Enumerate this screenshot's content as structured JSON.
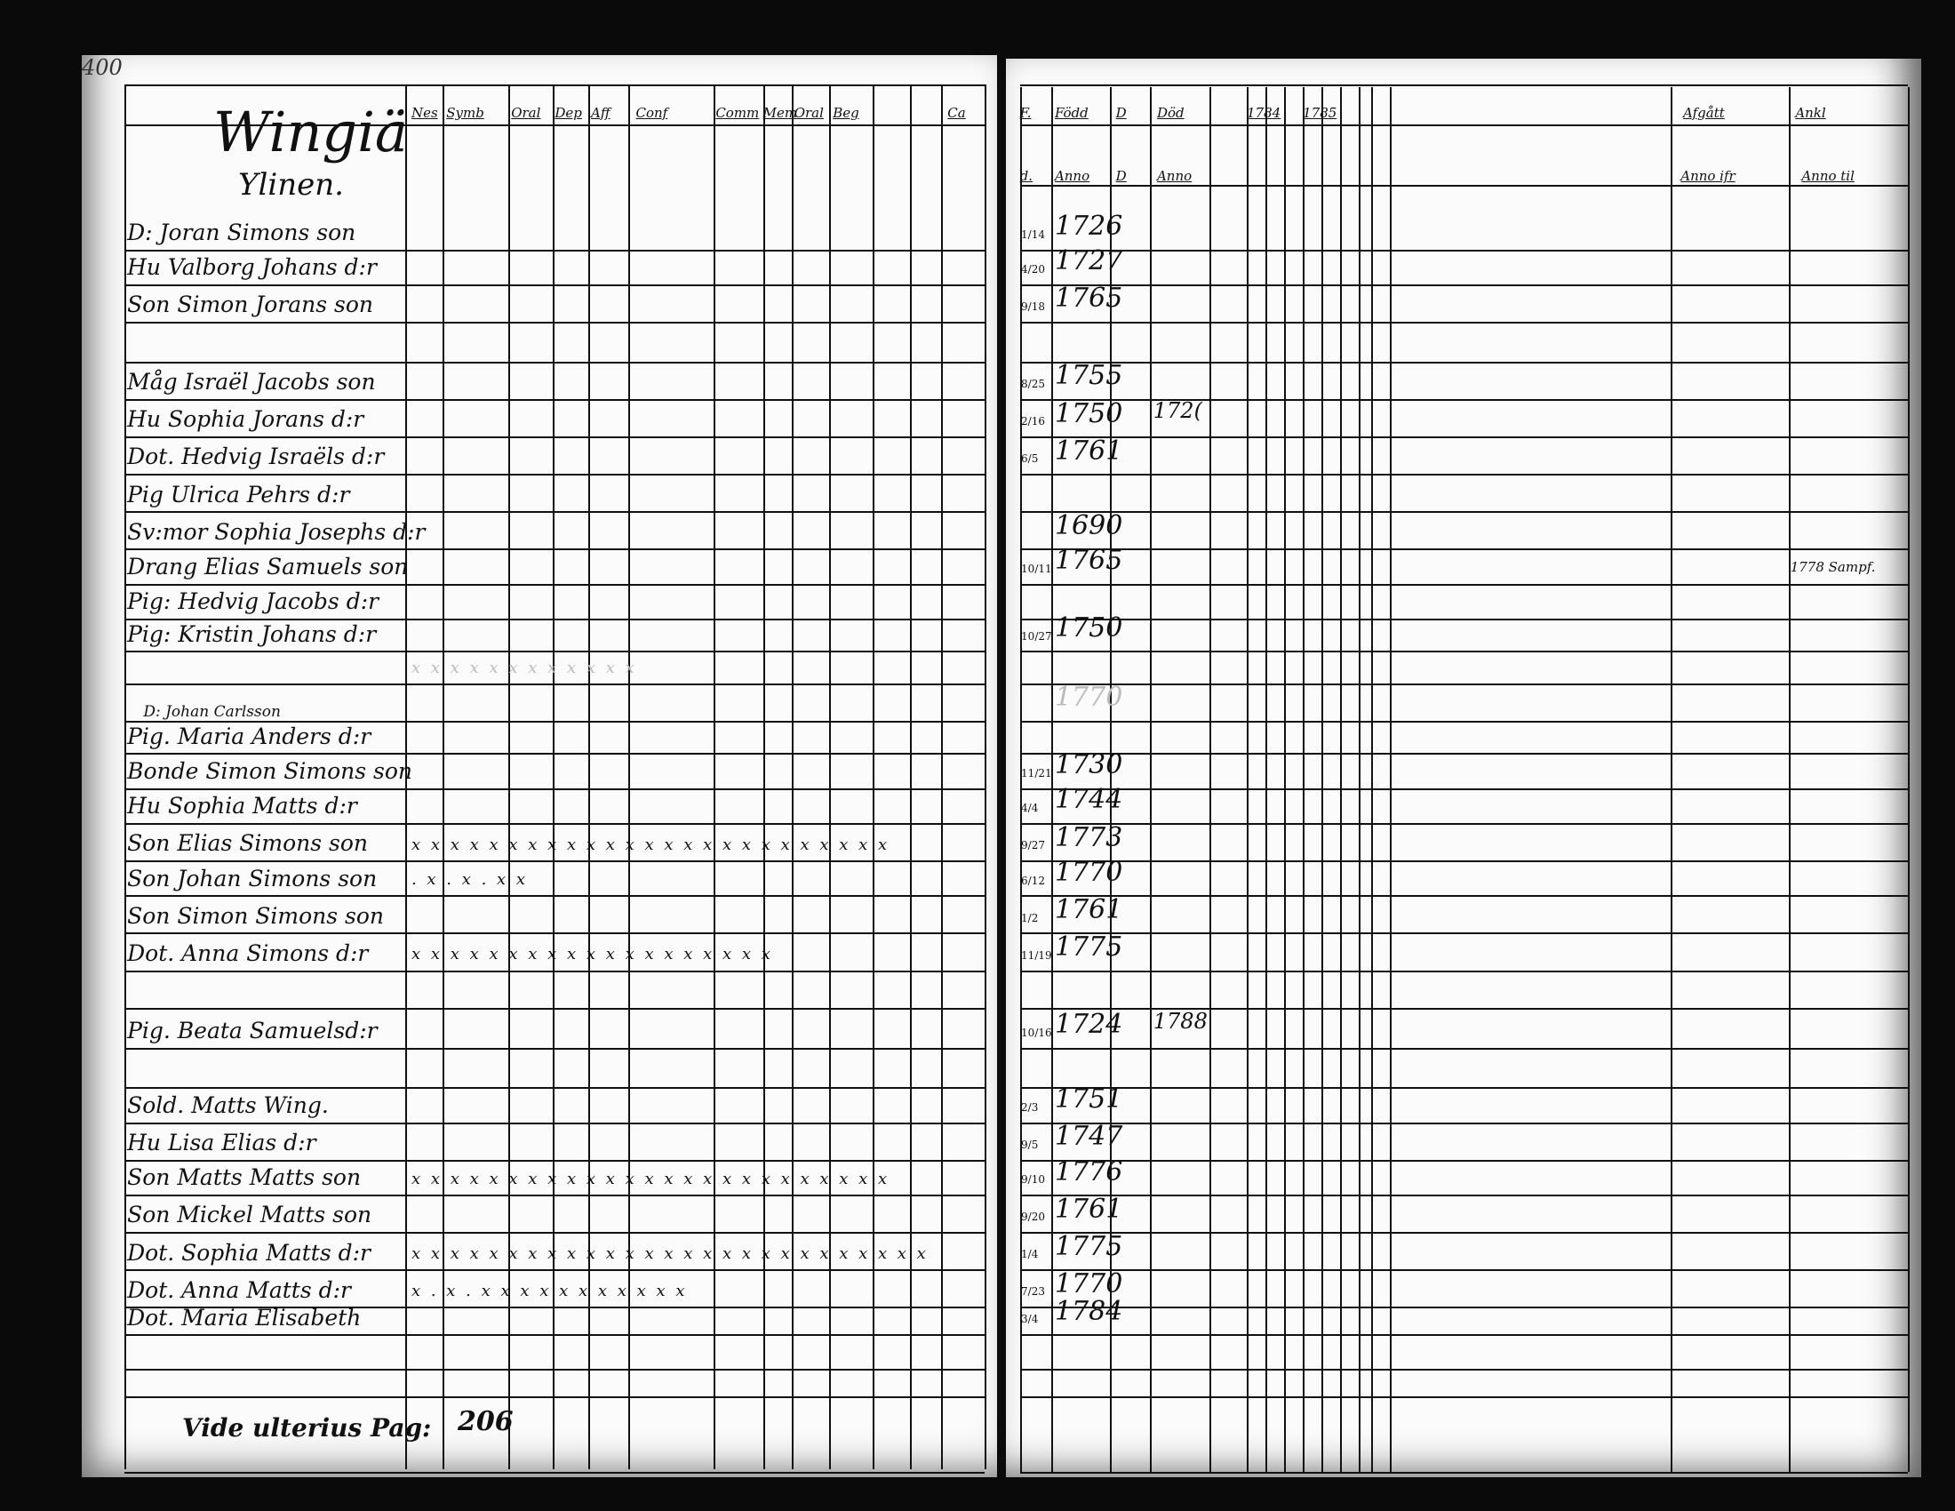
{
  "page_number": "400",
  "title": "Wingiä",
  "subtitle": "Ylinen.",
  "left_headers": [
    "Nes",
    "Symb",
    "Oral",
    "Dep",
    "Aff",
    "Conf",
    "Comm",
    "Mem",
    "Oral",
    "Beg",
    "",
    "Ca"
  ],
  "right_headers_top": [
    "F.",
    "Född",
    "D",
    "Död",
    "1784",
    "1785",
    "Afgått",
    "Ankl"
  ],
  "right_headers_bottom": [
    "d.",
    "Anno",
    "D",
    "Anno",
    "Anno ifr",
    "Anno til"
  ],
  "rows": [
    {
      "name": "D: Joran Simons son",
      "frac": "1/14",
      "year": "1726"
    },
    {
      "name": "Hu Valborg Johans d:r",
      "frac": "4/20",
      "year": "1727"
    },
    {
      "name": "Son Simon Jorans son",
      "frac": "9/18",
      "year": "1765"
    },
    {
      "name": "",
      "frac": "",
      "year": ""
    },
    {
      "name": "Måg Israël Jacobs son",
      "frac": "8/25",
      "year": "1755"
    },
    {
      "name": "Hu Sophia Jorans d:r",
      "frac": "2/16",
      "year": "1750",
      "died": "172("
    },
    {
      "name": "Dot. Hedvig Israëls d:r",
      "frac": "6/5",
      "year": "1761"
    },
    {
      "name": "Pig Ulrica Pehrs d:r",
      "frac": "",
      "year": ""
    },
    {
      "name": "Sv:mor Sophia Josephs d:r",
      "frac": "",
      "year": "1690"
    },
    {
      "name": "Drang Elias Samuels son",
      "frac": "10/11",
      "year": "1765",
      "note": "1778 Sampf."
    },
    {
      "name": "Pig: Hedvig Jacobs d:r",
      "frac": "",
      "year": ""
    },
    {
      "name": "Pig: Kristin Johans d:r",
      "frac": "10/27",
      "year": "1750"
    },
    {
      "name": "",
      "frac": "",
      "year": "",
      "faded": true,
      "marks": "x x x x x x x x x x x x"
    },
    {
      "name": "",
      "frac": "",
      "year": "1770",
      "faded": true
    },
    {
      "name": "Pig. Maria Anders d:r",
      "pre": "D: Johan Carlsson",
      "frac": "",
      "year": ""
    },
    {
      "name": "Bonde Simon Simons son",
      "frac": "11/21",
      "year": "1730"
    },
    {
      "name": "Hu Sophia Matts d:r",
      "frac": "4/4",
      "year": "1744"
    },
    {
      "name": "Son Elias Simons son",
      "frac": "9/27",
      "year": "1773",
      "marks": "x x x x x x x x x x x x x x x x x x x x x x   x x x"
    },
    {
      "name": "Son Johan Simons son",
      "frac": "6/12",
      "year": "1770",
      "marks": "  .  x      .  x    .  x         x"
    },
    {
      "name": "Son Simon Simons son",
      "frac": "1/2",
      "year": "1761"
    },
    {
      "name": "Dot. Anna Simons d:r",
      "frac": "11/19",
      "year": "1775",
      "marks": "x x x   x x x x x x x x   x x x x x x       x   x"
    },
    {
      "name": "",
      "frac": "",
      "year": ""
    },
    {
      "name": "Pig. Beata Samuelsd:r",
      "frac": "10/16",
      "year": "1724",
      "died": "1788"
    },
    {
      "name": "",
      "frac": "",
      "year": ""
    },
    {
      "name": "Sold. Matts Wing.",
      "frac": "2/3",
      "year": "1751"
    },
    {
      "name": "Hu Lisa Elias d:r",
      "frac": "9/5",
      "year": "1747"
    },
    {
      "name": "Son Matts Matts son",
      "frac": "9/10",
      "year": "1776",
      "marks": "x x x x x x x x x x x x x x x x x x x x x x   x x x"
    },
    {
      "name": "Son Mickel Matts son",
      "frac": "9/20",
      "year": "1761"
    },
    {
      "name": "Dot. Sophia Matts d:r",
      "frac": "1/4",
      "year": "1775",
      "marks": "x x x x x x x x x x x x x x x x x x x x x x x x   x x x"
    },
    {
      "name": "Dot. Anna Matts d:r",
      "frac": "7/23",
      "year": "1770",
      "marks": "x . x .   x x x   x     x x x   x x x x"
    },
    {
      "name": "Dot. Maria Elisabeth",
      "frac": "3/4",
      "year": "1784"
    },
    {
      "name": "",
      "frac": "",
      "year": ""
    },
    {
      "name": "",
      "frac": "",
      "year": ""
    }
  ],
  "footer": {
    "text": "Vide ulterius Pag:",
    "page": "206"
  }
}
